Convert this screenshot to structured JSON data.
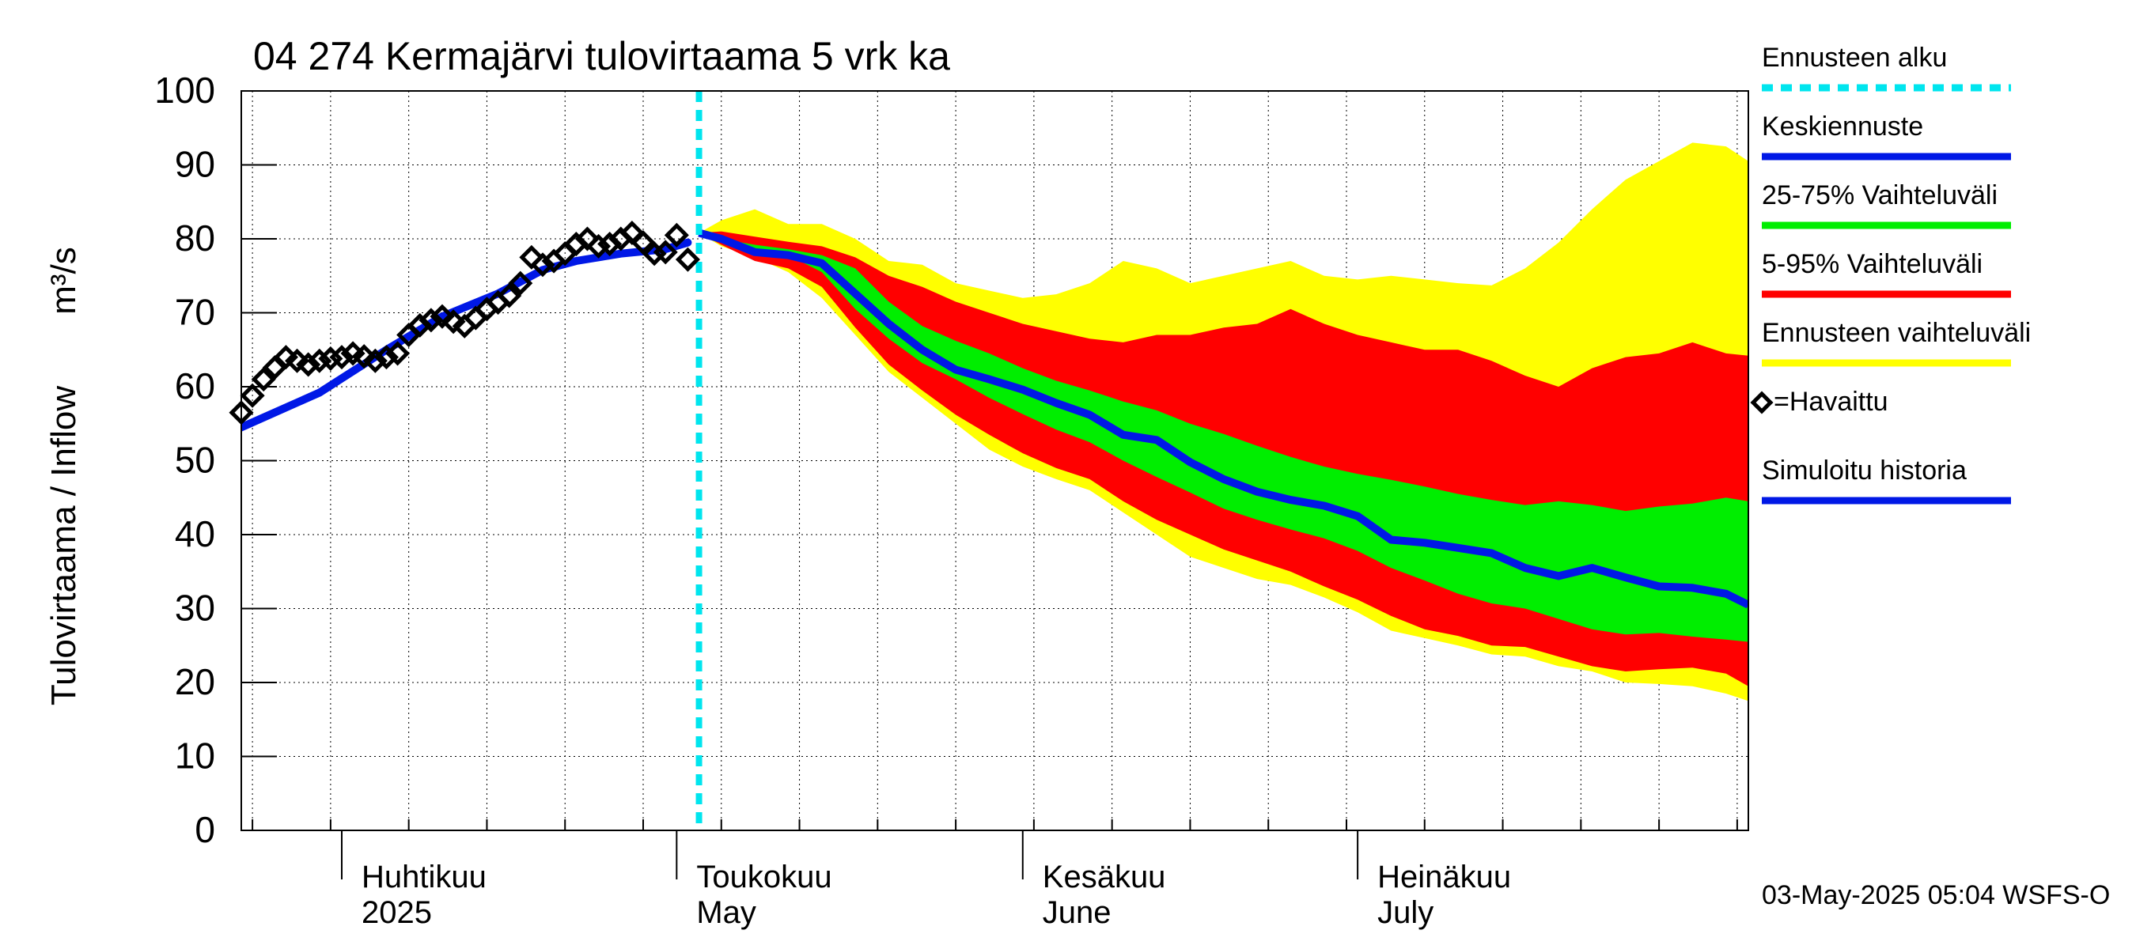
{
  "chart_data": {
    "type": "area",
    "title": "04 274 Kermajärvi tulovirtaama 5 vrk ka",
    "ylabel": "Tulovirtaama / Inflow",
    "yunit": "m³/s",
    "ylim": [
      0,
      100
    ],
    "yticks": [
      0,
      10,
      20,
      30,
      40,
      50,
      60,
      70,
      80,
      90,
      100
    ],
    "xlim": [
      "2025-03-23",
      "2025-08-05"
    ],
    "grid": true,
    "month_labels": [
      {
        "date": "2025-04-01",
        "fi": "Huhtikuu",
        "en": "2025"
      },
      {
        "date": "2025-05-01",
        "fi": "Toukokuu",
        "en": "May"
      },
      {
        "date": "2025-06-01",
        "fi": "Kesäkuu",
        "en": "June"
      },
      {
        "date": "2025-07-01",
        "fi": "Heinäkuu",
        "en": "July"
      }
    ],
    "forecast_start": "2025-05-03",
    "footer": "03-May-2025 05:04 WSFS-O",
    "legend_position": "right",
    "legend": [
      {
        "label": "Ennusteen alku",
        "color": "#00e5ee",
        "style": "dotted"
      },
      {
        "label": "Keskiennuste",
        "color": "#0018e6",
        "style": "line"
      },
      {
        "label": "25-75% Vaihteluväli",
        "color": "#00ee00",
        "style": "line"
      },
      {
        "label": "5-95% Vaihteluväli",
        "color": "#ff0000",
        "style": "line"
      },
      {
        "label": "Ennusteen vaihteluväli",
        "color": "#ffff00",
        "style": "line"
      },
      {
        "label": "=Havaittu",
        "color": "#000000",
        "style": "diamond"
      },
      {
        "label": "Simuloitu historia",
        "color": "#0018e6",
        "style": "line"
      }
    ],
    "observed": {
      "name": "Havaittu",
      "x": [
        "2025-03-23",
        "2025-03-24",
        "2025-03-25",
        "2025-03-26",
        "2025-03-27",
        "2025-03-28",
        "2025-03-29",
        "2025-03-30",
        "2025-03-31",
        "2025-04-01",
        "2025-04-02",
        "2025-04-03",
        "2025-04-04",
        "2025-04-05",
        "2025-04-06",
        "2025-04-07",
        "2025-04-08",
        "2025-04-09",
        "2025-04-10",
        "2025-04-11",
        "2025-04-12",
        "2025-04-13",
        "2025-04-14",
        "2025-04-15",
        "2025-04-16",
        "2025-04-17",
        "2025-04-18",
        "2025-04-19",
        "2025-04-20",
        "2025-04-21",
        "2025-04-22",
        "2025-04-23",
        "2025-04-24",
        "2025-04-25",
        "2025-04-26",
        "2025-04-27",
        "2025-04-28",
        "2025-04-29",
        "2025-04-30",
        "2025-05-01",
        "2025-05-02"
      ],
      "y": [
        56.5,
        58.8,
        61,
        62.6,
        64,
        63.5,
        63,
        63.5,
        63.8,
        64,
        64.5,
        64.1,
        63.5,
        64,
        64.5,
        67,
        68.3,
        69,
        69.5,
        68.8,
        68.2,
        69.3,
        70.5,
        71.4,
        72.3,
        74,
        77.5,
        76.5,
        77,
        78,
        79.3,
        80,
        79,
        79.3,
        80,
        80.8,
        79.5,
        78,
        78.2,
        80.5,
        77.2
      ]
    },
    "simulated": {
      "name": "Simuloitu historia",
      "x": [
        "2025-03-23",
        "2025-03-30",
        "2025-04-05",
        "2025-04-10",
        "2025-04-15",
        "2025-04-19",
        "2025-04-22",
        "2025-04-26",
        "2025-04-30",
        "2025-05-02"
      ],
      "y": [
        54.5,
        59.2,
        65,
        69.5,
        72.6,
        75.8,
        77,
        78,
        78.6,
        79.5
      ]
    },
    "forecast": {
      "x": [
        "2025-05-03",
        "2025-05-05",
        "2025-05-08",
        "2025-05-11",
        "2025-05-14",
        "2025-05-17",
        "2025-05-20",
        "2025-05-23",
        "2025-05-26",
        "2025-05-29",
        "2025-06-01",
        "2025-06-04",
        "2025-06-07",
        "2025-06-10",
        "2025-06-13",
        "2025-06-16",
        "2025-06-19",
        "2025-06-22",
        "2025-06-25",
        "2025-06-28",
        "2025-07-01",
        "2025-07-04",
        "2025-07-07",
        "2025-07-10",
        "2025-07-13",
        "2025-07-16",
        "2025-07-19",
        "2025-07-22",
        "2025-07-25",
        "2025-07-28",
        "2025-07-31",
        "2025-08-03",
        "2025-08-05"
      ],
      "min": [
        80.8,
        79,
        77.5,
        75.5,
        72,
        67,
        62,
        58.5,
        55,
        51.5,
        49.2,
        47.5,
        46,
        43,
        40,
        37,
        35.5,
        34,
        33.2,
        31.5,
        29.5,
        27,
        26,
        25,
        23.8,
        23.5,
        22.2,
        21.5,
        20,
        19.8,
        19.5,
        18.5,
        17.5
      ],
      "p5": [
        80.8,
        79.2,
        77,
        76,
        73.5,
        68,
        63,
        59.5,
        56.2,
        53.5,
        51,
        49,
        47.5,
        44.5,
        42,
        40,
        38,
        36.5,
        35,
        33,
        31.2,
        29,
        27.2,
        26.3,
        25,
        24.8,
        23.5,
        22.2,
        21.5,
        21.8,
        22,
        21.2,
        19.5
      ],
      "p25": [
        80.8,
        80,
        78.5,
        77.8,
        75.5,
        70.5,
        66.5,
        63.2,
        61,
        58.5,
        56.3,
        54.2,
        52.5,
        50,
        47.8,
        45.7,
        43.5,
        42,
        40.7,
        39.5,
        37.8,
        35.5,
        33.8,
        32,
        30.7,
        30,
        28.6,
        27.2,
        26.5,
        26.7,
        26.2,
        25.8,
        25.5
      ],
      "median": [
        80.8,
        80,
        78.2,
        77.8,
        76.7,
        72.6,
        68.5,
        65,
        62.3,
        61,
        59.6,
        57.8,
        56.2,
        53.5,
        52.8,
        49.8,
        47.5,
        45.8,
        44.7,
        43.9,
        42.5,
        39.3,
        38.9,
        38.2,
        37.5,
        35.5,
        34.4,
        35.5,
        34.2,
        33,
        32.8,
        32,
        30.5
      ],
      "p75": [
        80.8,
        80,
        79.2,
        78.6,
        77.8,
        76,
        71.5,
        68.2,
        66.2,
        64.5,
        62.5,
        60.8,
        59.5,
        58,
        56.8,
        55,
        53.6,
        52,
        50.5,
        49.2,
        48.2,
        47.4,
        46.5,
        45.5,
        44.7,
        44,
        44.5,
        44,
        43.2,
        43.8,
        44.2,
        45,
        44.5
      ],
      "p95": [
        80.8,
        81,
        80.3,
        79.6,
        79,
        77.5,
        75,
        73.5,
        71.5,
        70,
        68.5,
        67.5,
        66.5,
        66,
        67,
        67,
        68,
        68.5,
        70.5,
        68.5,
        67,
        66,
        65,
        65,
        63.5,
        61.5,
        60,
        62.5,
        64,
        64.5,
        66,
        64.5,
        64.2
      ],
      "max": [
        80.8,
        82.5,
        84,
        82,
        82,
        80,
        77,
        76.5,
        74,
        73,
        72,
        72.5,
        74,
        77,
        76,
        74,
        75,
        76,
        77,
        75,
        74.5,
        75,
        74.5,
        74,
        73.7,
        76,
        79.5,
        84,
        88,
        90.5,
        93,
        92.5,
        90.5
      ]
    }
  }
}
